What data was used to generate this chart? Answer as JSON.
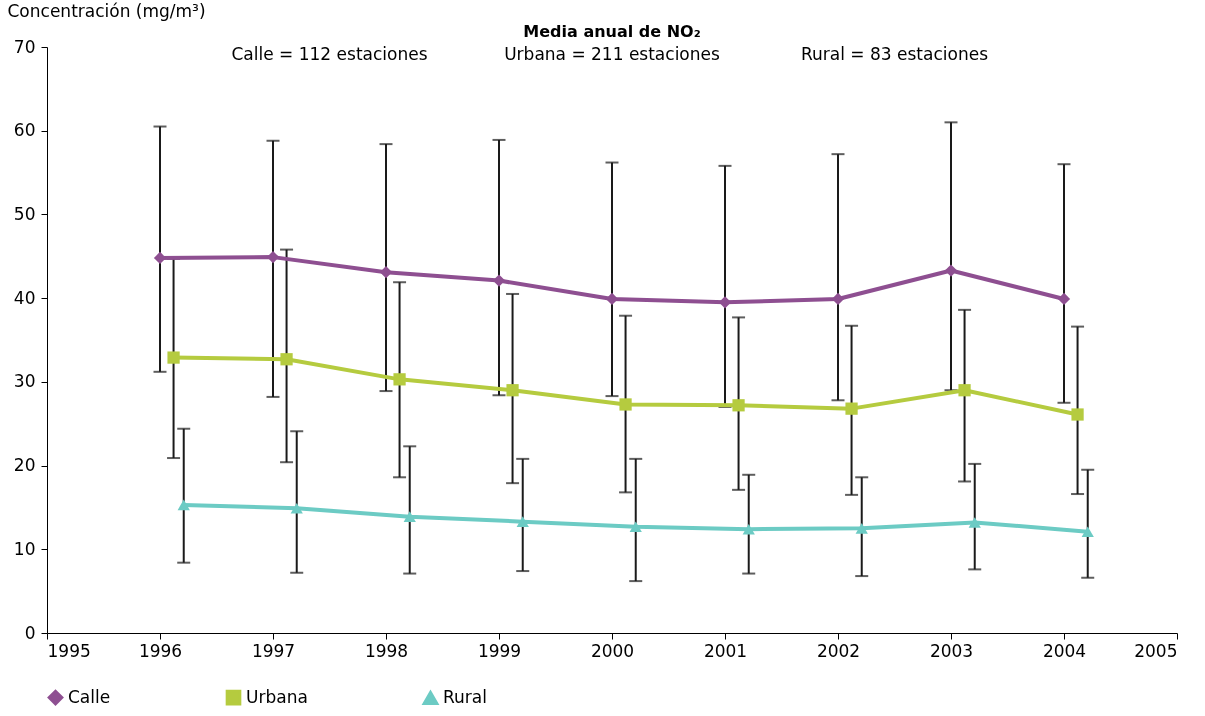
{
  "chart_data": {
    "type": "line",
    "title": "Media anual de NO₂",
    "ylabel": "Concentración (mg/m³)",
    "annotations": [
      "Calle = 112 estaciones",
      "Urbana = 211 estaciones",
      "Rural = 83 estaciones"
    ],
    "xlim": [
      1995,
      2005
    ],
    "xticks": [
      1995,
      1996,
      1997,
      1998,
      1999,
      2000,
      2001,
      2002,
      2003,
      2004,
      2005
    ],
    "ylim": [
      0,
      70
    ],
    "yticks": [
      0,
      10,
      20,
      30,
      40,
      50,
      60,
      70
    ],
    "grid": false,
    "legend": "bottom",
    "line_style": "solid",
    "series": [
      {
        "name": "Calle",
        "color": "#8e4f91",
        "marker": "diamond",
        "x": [
          1996,
          1997,
          1998,
          1999,
          2000,
          2001,
          2002,
          2003,
          2004
        ],
        "values": [
          44.8,
          44.9,
          43.1,
          42.1,
          39.9,
          39.5,
          39.9,
          43.3,
          39.9
        ],
        "errors": [
          [
            31.2,
            60.5
          ],
          [
            28.2,
            58.8
          ],
          [
            28.9,
            58.4
          ],
          [
            28.4,
            58.9
          ],
          [
            28.3,
            56.2
          ],
          [
            27.0,
            55.8
          ],
          [
            27.8,
            57.2
          ],
          [
            29.0,
            61.0
          ],
          [
            27.5,
            56.0
          ]
        ]
      },
      {
        "name": "Urbana",
        "color": "#b5cb3f",
        "marker": "square",
        "x": [
          1996.12,
          1997.12,
          1998.12,
          1999.12,
          2000.12,
          2001.12,
          2002.12,
          2003.12,
          2004.12
        ],
        "values": [
          32.9,
          32.7,
          30.3,
          29.0,
          27.3,
          27.2,
          26.8,
          29.0,
          26.1
        ],
        "errors": [
          [
            20.9,
            44.7
          ],
          [
            20.4,
            45.8
          ],
          [
            18.6,
            41.9
          ],
          [
            17.9,
            40.5
          ],
          [
            16.8,
            37.9
          ],
          [
            17.1,
            37.7
          ],
          [
            16.5,
            36.7
          ],
          [
            18.1,
            38.6
          ],
          [
            16.6,
            36.6
          ]
        ]
      },
      {
        "name": "Rural",
        "color": "#6ccbc4",
        "marker": "triangle",
        "x": [
          1996.21,
          1997.21,
          1998.21,
          1999.21,
          2000.21,
          2001.21,
          2002.21,
          2003.21,
          2004.21
        ],
        "values": [
          15.3,
          14.9,
          13.9,
          13.3,
          12.7,
          12.4,
          12.5,
          13.2,
          12.1
        ],
        "errors": [
          [
            8.4,
            24.4
          ],
          [
            7.2,
            24.1
          ],
          [
            7.1,
            22.3
          ],
          [
            7.4,
            20.8
          ],
          [
            6.2,
            20.8
          ],
          [
            7.1,
            18.9
          ],
          [
            6.8,
            18.6
          ],
          [
            7.6,
            20.2
          ],
          [
            6.6,
            19.5
          ]
        ]
      }
    ]
  }
}
